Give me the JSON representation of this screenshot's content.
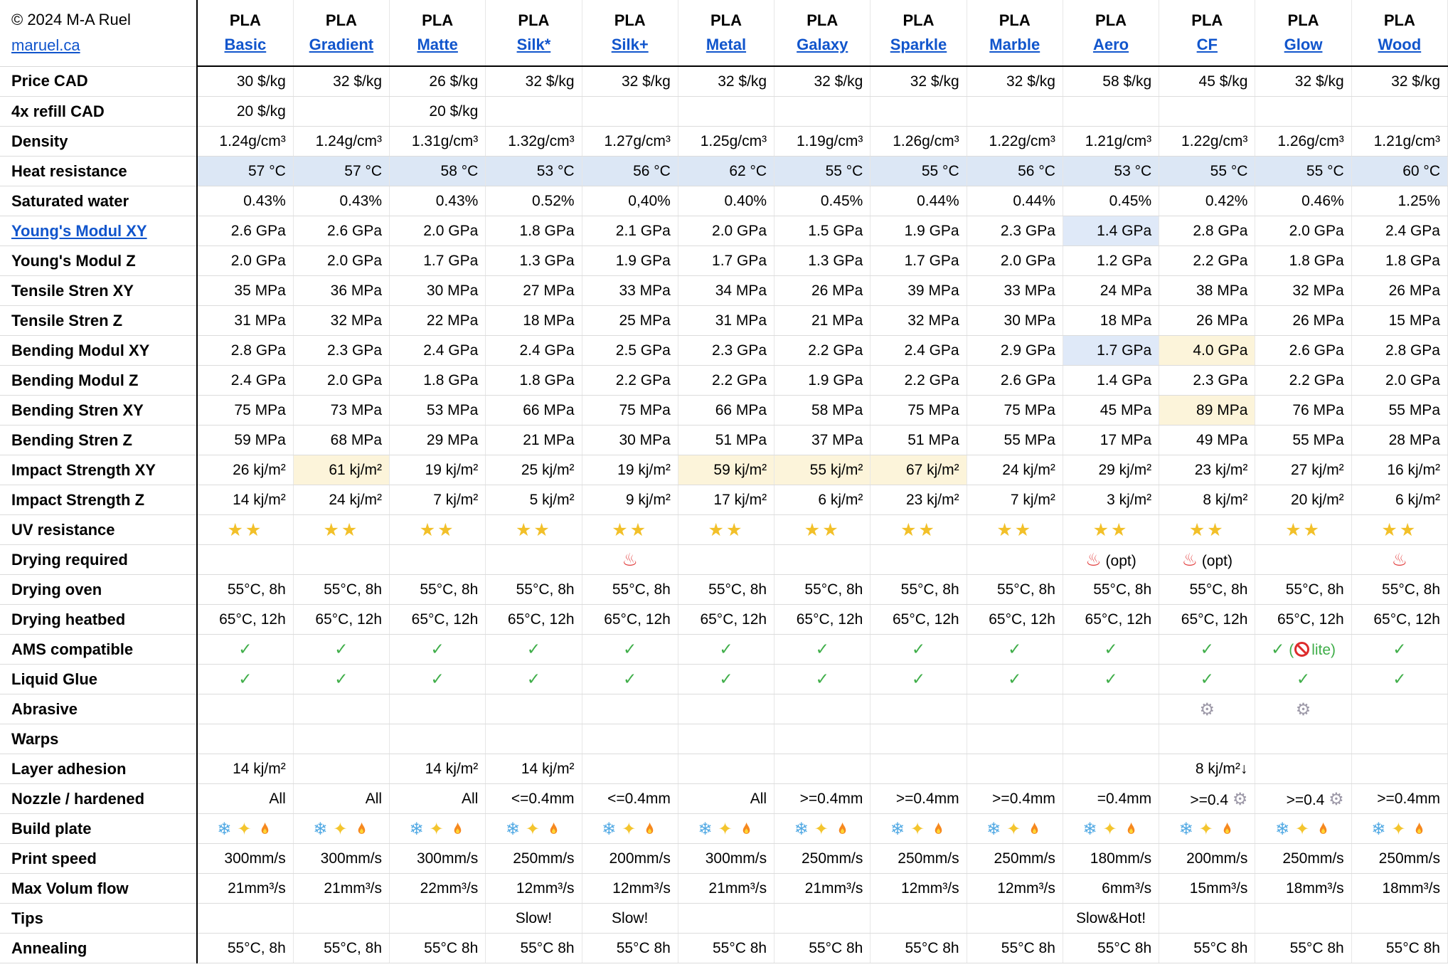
{
  "page": {
    "copyright": "© 2024 M-A Ruel",
    "site_link": "maruel.ca"
  },
  "colors": {
    "link_blue": "#1155cc",
    "row_highlight_blue": "#dce7f5",
    "cell_highlight_blue": "#dfe9f8",
    "cell_highlight_yellow": "#fcf4da",
    "star_gold": "#f2c029",
    "check_green": "#3fae49",
    "hot_red": "#e23d3d",
    "gear_gray": "#9d99a8",
    "snow_blue": "#53aae4",
    "flame_orange": "#f6881f"
  },
  "icons": {
    "star": "star-icon",
    "hot": "hot-springs-icon",
    "check": "checkmark-icon",
    "gear": "gear-icon",
    "snow": "snowflake-icon",
    "sparkle": "sparkles-icon",
    "fire": "fire-icon",
    "ban": "prohibited-icon"
  },
  "columns": [
    {
      "brand": "PLA",
      "name": "Basic"
    },
    {
      "brand": "PLA",
      "name": "Gradient"
    },
    {
      "brand": "PLA",
      "name": "Matte"
    },
    {
      "brand": "PLA",
      "name": "Silk*"
    },
    {
      "brand": "PLA",
      "name": "Silk+"
    },
    {
      "brand": "PLA",
      "name": "Metal"
    },
    {
      "brand": "PLA",
      "name": "Galaxy"
    },
    {
      "brand": "PLA",
      "name": "Sparkle"
    },
    {
      "brand": "PLA",
      "name": "Marble"
    },
    {
      "brand": "PLA",
      "name": "Aero"
    },
    {
      "brand": "PLA",
      "name": "CF"
    },
    {
      "brand": "PLA",
      "name": "Glow"
    },
    {
      "brand": "PLA",
      "name": "Wood"
    }
  ],
  "rows": [
    {
      "label": "Price CAD",
      "align": "right",
      "cells": [
        "30 $/kg",
        "32 $/kg",
        "26 $/kg",
        "32 $/kg",
        "32 $/kg",
        "32 $/kg",
        "32 $/kg",
        "32 $/kg",
        "32 $/kg",
        "58 $/kg",
        "45 $/kg",
        "32 $/kg",
        "32 $/kg"
      ]
    },
    {
      "label": "4x refill CAD",
      "align": "right",
      "cells": [
        "20 $/kg",
        "",
        "20 $/kg",
        "",
        "",
        "",
        "",
        "",
        "",
        "",
        "",
        "",
        ""
      ]
    },
    {
      "label": "Density",
      "align": "right",
      "cells": [
        "1.24g/cm³",
        "1.24g/cm³",
        "1.31g/cm³",
        "1.32g/cm³",
        "1.27g/cm³",
        "1.25g/cm³",
        "1.19g/cm³",
        "1.26g/cm³",
        "1.22g/cm³",
        "1.21g/cm³",
        "1.22g/cm³",
        "1.26g/cm³",
        "1.21g/cm³"
      ]
    },
    {
      "label": "Heat resistance",
      "align": "right",
      "row_hl": "blue",
      "cells": [
        "57 °C",
        "57 °C",
        "58 °C",
        "53 °C",
        "56 °C",
        "62 °C",
        "55 °C",
        "55 °C",
        "56 °C",
        "53 °C",
        "55 °C",
        "55 °C",
        "60 °C"
      ]
    },
    {
      "label": "Saturated water",
      "align": "right",
      "cells": [
        "0.43%",
        "0.43%",
        "0.43%",
        "0.52%",
        "0,40%",
        "0.40%",
        "0.45%",
        "0.44%",
        "0.44%",
        "0.45%",
        "0.42%",
        "0.46%",
        "1.25%"
      ]
    },
    {
      "label": "Young's Modul XY",
      "align": "right",
      "label_link": true,
      "cells": [
        "2.6 GPa",
        "2.6 GPa",
        "2.0 GPa",
        "1.8 GPa",
        "2.1 GPa",
        "2.0 GPa",
        "1.5 GPa",
        "1.9 GPa",
        "2.3 GPa",
        {
          "t": "1.4 GPa",
          "hl": "blue"
        },
        "2.8 GPa",
        "2.0 GPa",
        "2.4 GPa"
      ]
    },
    {
      "label": "Young's Modul Z",
      "align": "right",
      "cells": [
        "2.0 GPa",
        "2.0 GPa",
        "1.7 GPa",
        "1.3 GPa",
        "1.9 GPa",
        "1.7 GPa",
        "1.3 GPa",
        "1.7 GPa",
        "2.0 GPa",
        "1.2 GPa",
        "2.2 GPa",
        "1.8 GPa",
        "1.8 GPa"
      ]
    },
    {
      "label": "Tensile Stren XY",
      "align": "right",
      "cells": [
        "35 MPa",
        "36 MPa",
        "30 MPa",
        "27 MPa",
        "33 MPa",
        "34 MPa",
        "26 MPa",
        "39 MPa",
        "33 MPa",
        "24 MPa",
        "38 MPa",
        "32 MPa",
        "26 MPa"
      ]
    },
    {
      "label": "Tensile Stren Z",
      "align": "right",
      "cells": [
        "31 MPa",
        "32 MPa",
        "22 MPa",
        "18 MPa",
        "25 MPa",
        "31 MPa",
        "21 MPa",
        "32 MPa",
        "30 MPa",
        "18 MPa",
        "26 MPa",
        "26 MPa",
        "15 MPa"
      ]
    },
    {
      "label": "Bending Modul XY",
      "align": "right",
      "cells": [
        "2.8 GPa",
        "2.3 GPa",
        "2.4 GPa",
        "2.4 GPa",
        "2.5 GPa",
        "2.3 GPa",
        "2.2 GPa",
        "2.4 GPa",
        "2.9 GPa",
        {
          "t": "1.7 GPa",
          "hl": "blue"
        },
        {
          "t": "4.0 GPa",
          "hl": "yellow"
        },
        "2.6 GPa",
        "2.8 GPa"
      ]
    },
    {
      "label": "Bending Modul Z",
      "align": "right",
      "cells": [
        "2.4 GPa",
        "2.0 GPa",
        "1.8 GPa",
        "1.8 GPa",
        "2.2 GPa",
        "2.2 GPa",
        "1.9 GPa",
        "2.2 GPa",
        "2.6 GPa",
        "1.4 GPa",
        "2.3 GPa",
        "2.2 GPa",
        "2.0 GPa"
      ]
    },
    {
      "label": "Bending Stren XY",
      "align": "right",
      "cells": [
        "75 MPa",
        "73 MPa",
        "53 MPa",
        "66 MPa",
        "75 MPa",
        "66 MPa",
        "58 MPa",
        "75 MPa",
        "75 MPa",
        "45 MPa",
        {
          "t": "89 MPa",
          "hl": "yellow"
        },
        "76 MPa",
        "55 MPa"
      ]
    },
    {
      "label": "Bending Stren Z",
      "align": "right",
      "cells": [
        "59 MPa",
        "68 MPa",
        "29 MPa",
        "21 MPa",
        "30 MPa",
        "51 MPa",
        "37 MPa",
        "51 MPa",
        "55 MPa",
        "17 MPa",
        "49 MPa",
        "55 MPa",
        "28 MPa"
      ]
    },
    {
      "label": "Impact Strength XY",
      "align": "right",
      "cells": [
        "26 kj/m²",
        {
          "t": "61 kj/m²",
          "hl": "yellow"
        },
        "19 kj/m²",
        "25 kj/m²",
        "19 kj/m²",
        {
          "t": "59 kj/m²",
          "hl": "yellow"
        },
        {
          "t": "55 kj/m²",
          "hl": "yellow"
        },
        {
          "t": "67 kj/m²",
          "hl": "yellow"
        },
        "24 kj/m²",
        "29 kj/m²",
        "23 kj/m²",
        "27 kj/m²",
        "16 kj/m²"
      ]
    },
    {
      "label": "Impact Strength Z",
      "align": "right",
      "cells": [
        "14 kj/m²",
        "24 kj/m²",
        "7 kj/m²",
        "5 kj/m²",
        "9 kj/m²",
        "17 kj/m²",
        "6 kj/m²",
        "23 kj/m²",
        "7 kj/m²",
        "3 kj/m²",
        "8 kj/m²",
        "20 kj/m²",
        "6 kj/m²"
      ]
    },
    {
      "label": "UV resistance",
      "align": "center",
      "cells": [
        "{star}{star}",
        "{star}{star}",
        "{star}{star}",
        "{star}{star}",
        "{star}{star}",
        "{star}{star}",
        "{star}{star}",
        "{star}{star}",
        "{star}{star}",
        "{star}{star}",
        "{star}{star}",
        "{star}{star}",
        "{star}{star}"
      ]
    },
    {
      "label": "Drying required",
      "align": "center",
      "cells": [
        "",
        "",
        "",
        "",
        "{hot}",
        "",
        "",
        "",
        "",
        "{hot} (opt)",
        "{hot} (opt)",
        "",
        "{hot}"
      ]
    },
    {
      "label": "Drying oven",
      "align": "right",
      "cells": [
        "55°C, 8h",
        "55°C, 8h",
        "55°C, 8h",
        "55°C, 8h",
        "55°C, 8h",
        "55°C, 8h",
        "55°C, 8h",
        "55°C, 8h",
        "55°C, 8h",
        "55°C, 8h",
        "55°C, 8h",
        "55°C, 8h",
        "55°C, 8h"
      ]
    },
    {
      "label": "Drying heatbed",
      "align": "right",
      "cells": [
        "65°C, 12h",
        "65°C, 12h",
        "65°C, 12h",
        "65°C, 12h",
        "65°C, 12h",
        "65°C, 12h",
        "65°C, 12h",
        "65°C, 12h",
        "65°C, 12h",
        "65°C, 12h",
        "65°C, 12h",
        "65°C, 12h",
        "65°C, 12h"
      ]
    },
    {
      "label": "AMS compatible",
      "align": "center",
      "cls": "green",
      "cells": [
        "{check}",
        "{check}",
        "{check}",
        "{check}",
        "{check}",
        "{check}",
        "{check}",
        "{check}",
        "{check}",
        "{check}",
        "{check}",
        "{check} ({ban}lite)",
        "{check}"
      ]
    },
    {
      "label": "Liquid Glue",
      "align": "center",
      "cls": "green",
      "cells": [
        "{check}",
        "{check}",
        "{check}",
        "{check}",
        "{check}",
        "{check}",
        "{check}",
        "{check}",
        "{check}",
        "{check}",
        "{check}",
        "{check}",
        "{check}"
      ]
    },
    {
      "label": "Abrasive",
      "align": "center",
      "cells": [
        "",
        "",
        "",
        "",
        "",
        "",
        "",
        "",
        "",
        "",
        "{gear}",
        "{gear}",
        ""
      ]
    },
    {
      "label": "Warps",
      "align": "center",
      "cells": [
        "",
        "",
        "",
        "",
        "",
        "",
        "",
        "",
        "",
        "",
        "",
        "",
        ""
      ]
    },
    {
      "label": "Layer adhesion",
      "align": "right",
      "cells": [
        "14 kj/m²",
        "",
        "14 kj/m²",
        "14 kj/m²",
        "",
        "",
        "",
        "",
        "",
        "",
        "8 kj/m²↓",
        "",
        ""
      ]
    },
    {
      "label": "Nozzle / hardened",
      "align": "right",
      "cells": [
        "All",
        "All",
        "All",
        "<=0.4mm",
        "<=0.4mm",
        "All",
        ">=0.4mm",
        ">=0.4mm",
        ">=0.4mm",
        "=0.4mm",
        ">=0.4 {gear}",
        ">=0.4 {gear}",
        ">=0.4mm"
      ]
    },
    {
      "label": "Build plate",
      "align": "center",
      "cells": [
        "{snow}{sparkle}{fire}",
        "{snow}{sparkle}{fire}",
        "{snow}{sparkle}{fire}",
        "{snow}{sparkle}{fire}",
        "{snow}{sparkle}{fire}",
        "{snow}{sparkle}{fire}",
        "{snow}{sparkle}{fire}",
        "{snow}{sparkle}{fire}",
        "{snow}{sparkle}{fire}",
        "{snow}{sparkle}{fire}",
        "{snow}{sparkle}{fire}",
        "{snow}{sparkle}{fire}",
        "{snow}{sparkle}{fire}"
      ]
    },
    {
      "label": "Print speed",
      "align": "right",
      "cells": [
        "300mm/s",
        "300mm/s",
        "300mm/s",
        "250mm/s",
        "200mm/s",
        "300mm/s",
        "250mm/s",
        "250mm/s",
        "250mm/s",
        "180mm/s",
        "200mm/s",
        "250mm/s",
        "250mm/s"
      ]
    },
    {
      "label": "Max Volum flow",
      "align": "right",
      "cells": [
        "21mm³/s",
        "21mm³/s",
        "22mm³/s",
        "12mm³/s",
        "12mm³/s",
        "21mm³/s",
        "21mm³/s",
        "12mm³/s",
        "12mm³/s",
        "6mm³/s",
        "15mm³/s",
        "18mm³/s",
        "18mm³/s"
      ]
    },
    {
      "label": "Tips",
      "align": "center",
      "cells": [
        "",
        "",
        "",
        "Slow!",
        "Slow!",
        "",
        "",
        "",
        "",
        "Slow&Hot!",
        "",
        "",
        ""
      ]
    },
    {
      "label": "Annealing",
      "align": "right",
      "cells": [
        "55°C, 8h",
        "55°C, 8h",
        "55°C 8h",
        "55°C 8h",
        "55°C 8h",
        "55°C 8h",
        "55°C 8h",
        "55°C 8h",
        "55°C 8h",
        "55°C 8h",
        "55°C 8h",
        "55°C 8h",
        "55°C 8h"
      ]
    }
  ]
}
